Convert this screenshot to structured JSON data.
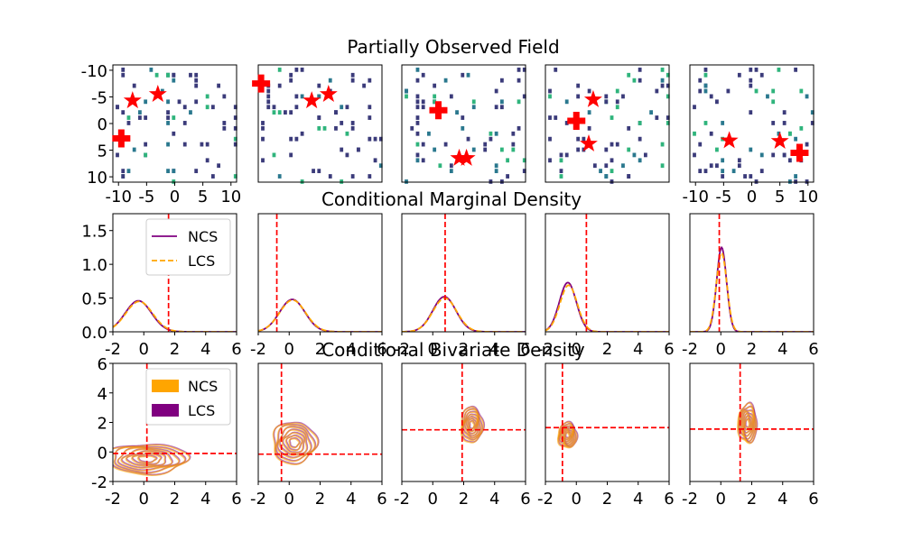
{
  "row_titles": [
    "Partially Observed Field",
    "Conditional Marginal Density",
    "Conditional Bivariate Density"
  ],
  "colors": {
    "NCS": "#800080",
    "LCS": "#FFA500",
    "marker": "#FF0000",
    "ref_line": "#FF0000",
    "obs_dark": "#3B3B7A",
    "obs_mid": "#2A788E",
    "obs_light": "#2FB47C"
  },
  "row1": {
    "ticks": [
      "-10",
      "-5",
      "0",
      "5",
      "10"
    ],
    "tick_values": [
      -10,
      -5,
      0,
      5,
      10
    ],
    "panels": [
      {
        "crosses": [
          [
            -9.5,
            2.8
          ]
        ],
        "stars": [
          [
            -7.5,
            -4.3
          ],
          [
            -3.0,
            -5.5
          ]
        ]
      },
      {
        "crosses": [
          [
            -10.5,
            -7.5
          ]
        ],
        "stars": [
          [
            -1.5,
            -4.3
          ],
          [
            1.5,
            -5.5
          ]
        ]
      },
      {
        "crosses": [
          [
            -4.5,
            -2.5
          ]
        ],
        "stars": [
          [
            -0.8,
            6.5
          ],
          [
            0.5,
            6.5
          ]
        ]
      },
      {
        "crosses": [
          [
            -5.5,
            -0.5
          ]
        ],
        "stars": [
          [
            -3.3,
            3.8
          ],
          [
            -2.5,
            -4.5
          ]
        ]
      },
      {
        "crosses": [
          [
            8.5,
            5.5
          ]
        ],
        "stars": [
          [
            -4.0,
            3.2
          ],
          [
            5.0,
            3.3
          ]
        ]
      }
    ]
  },
  "chart_data": [
    {
      "type": "line",
      "title": "Conditional Marginal Density",
      "xlim": [
        -2,
        6
      ],
      "ylim": [
        0,
        1.75
      ],
      "xticks": [
        "-2",
        "0",
        "2",
        "4",
        "6"
      ],
      "xtick_values": [
        -2,
        0,
        2,
        4,
        6
      ],
      "yticks": [
        "0.0",
        "0.5",
        "1.0",
        "1.5"
      ],
      "ytick_values": [
        0,
        0.5,
        1.0,
        1.5
      ],
      "legend": {
        "entries": [
          "NCS",
          "LCS"
        ],
        "placement": "upper-center"
      },
      "panels": [
        {
          "ref_x": 1.6,
          "ncs": {
            "mu": -0.35,
            "sigma": 0.85,
            "peak": 0.46
          },
          "lcs": {
            "mu": -0.3,
            "sigma": 0.87,
            "peak": 0.45
          }
        },
        {
          "ref_x": -0.8,
          "ncs": {
            "mu": 0.2,
            "sigma": 0.82,
            "peak": 0.48
          },
          "lcs": {
            "mu": 0.22,
            "sigma": 0.84,
            "peak": 0.47
          }
        },
        {
          "ref_x": 0.8,
          "ncs": {
            "mu": 0.75,
            "sigma": 0.75,
            "peak": 0.52
          },
          "lcs": {
            "mu": 0.78,
            "sigma": 0.77,
            "peak": 0.5
          }
        },
        {
          "ref_x": 0.65,
          "ncs": {
            "mu": -0.55,
            "sigma": 0.55,
            "peak": 0.73
          },
          "lcs": {
            "mu": -0.5,
            "sigma": 0.56,
            "peak": 0.69
          }
        },
        {
          "ref_x": -0.1,
          "ncs": {
            "mu": 0.05,
            "sigma": 0.32,
            "peak": 1.25
          },
          "lcs": {
            "mu": 0.05,
            "sigma": 0.34,
            "peak": 1.17
          }
        }
      ]
    },
    {
      "type": "contour",
      "title": "Conditional Bivariate Density",
      "xlim": [
        -2,
        6
      ],
      "ylim": [
        -2,
        6
      ],
      "xticks": [
        "-2",
        "0",
        "2",
        "4",
        "6"
      ],
      "xtick_values": [
        -2,
        0,
        2,
        4,
        6
      ],
      "yticks": [
        "-2",
        "0",
        "2",
        "4",
        "6"
      ],
      "ytick_values": [
        -2,
        0,
        2,
        4,
        6
      ],
      "legend": {
        "entries": [
          "NCS",
          "LCS"
        ],
        "placement": "upper-center"
      },
      "panels": [
        {
          "ref_x": 0.2,
          "ref_y": -0.1,
          "center": [
            0.2,
            -0.5
          ],
          "spread": [
            2.6,
            1.0
          ]
        },
        {
          "ref_x": -0.5,
          "ref_y": -0.15,
          "center": [
            0.3,
            0.6
          ],
          "spread": [
            1.4,
            1.4
          ]
        },
        {
          "ref_x": 1.9,
          "ref_y": 1.5,
          "center": [
            2.5,
            1.8
          ],
          "spread": [
            0.7,
            1.2
          ]
        },
        {
          "ref_x": -0.9,
          "ref_y": 1.65,
          "center": [
            -0.6,
            1.1
          ],
          "spread": [
            0.6,
            0.85
          ]
        },
        {
          "ref_x": 1.25,
          "ref_y": 1.55,
          "center": [
            1.7,
            1.9
          ],
          "spread": [
            0.6,
            1.3
          ]
        }
      ]
    }
  ]
}
